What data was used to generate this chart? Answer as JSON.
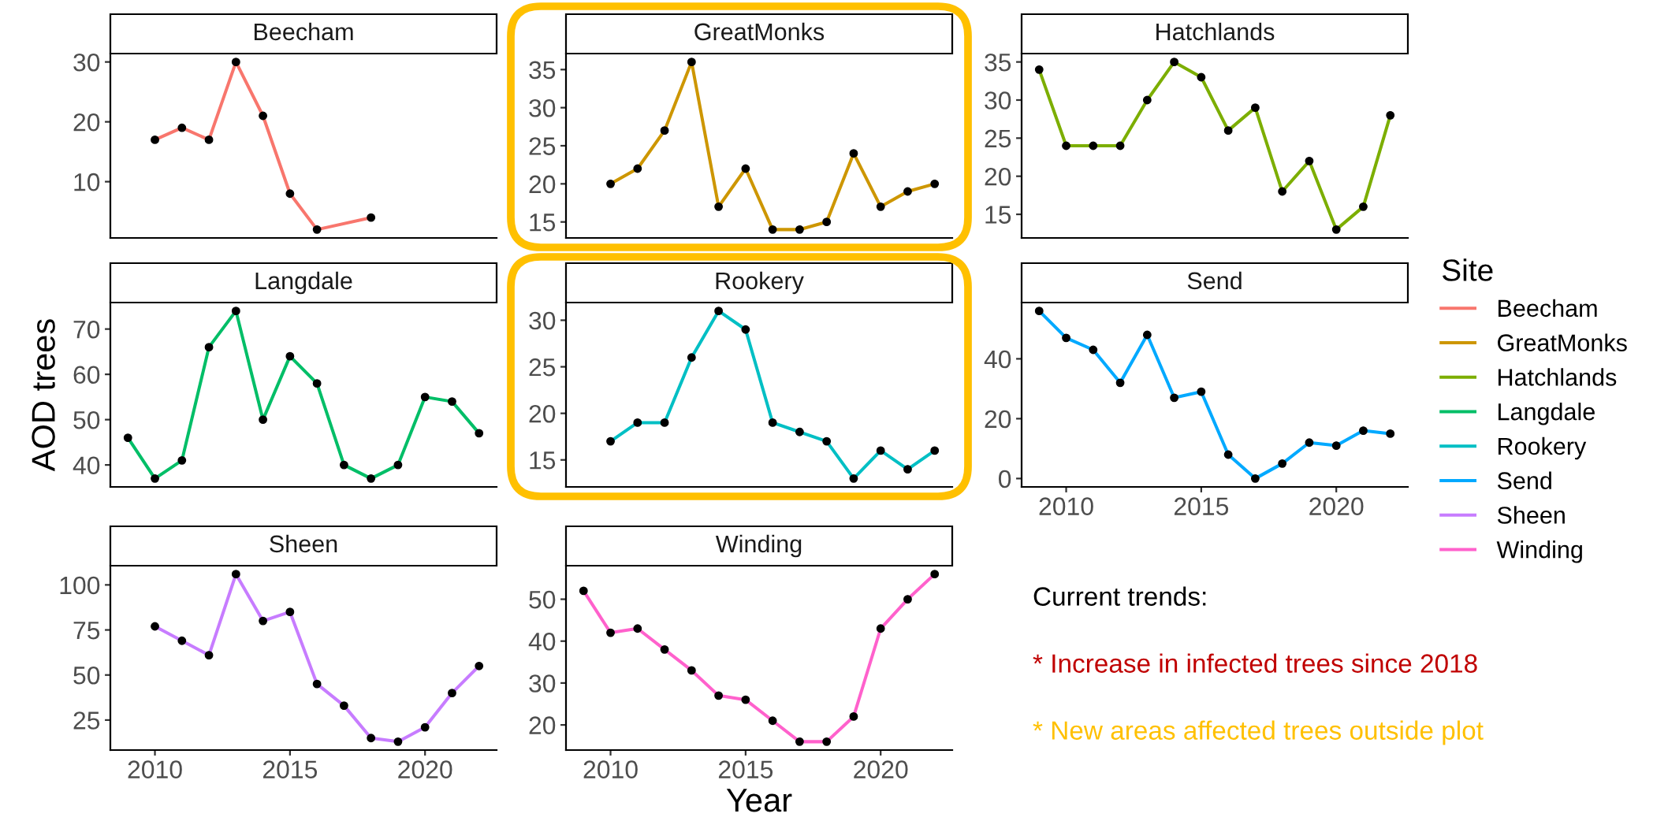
{
  "chart_data": [
    {
      "type": "line",
      "title": "Beecham",
      "x": [
        2010,
        2011,
        2012,
        2013,
        2014,
        2015,
        2016,
        2018
      ],
      "series": [
        {
          "name": "Beecham",
          "color": "#f8766d",
          "values": [
            17,
            19,
            17,
            30,
            21,
            8,
            2,
            4
          ]
        }
      ],
      "marker": "circle",
      "xlim": [
        2008.35,
        2022.65
      ],
      "xticks": [
        2010,
        2015,
        2020
      ],
      "ylim": [
        0.6,
        31.4
      ],
      "yticks": [
        10,
        20,
        30
      ],
      "tick_labels": "y"
    },
    {
      "type": "line",
      "title": "GreatMonks",
      "x": [
        2010,
        2011,
        2012,
        2013,
        2014,
        2015,
        2016,
        2017,
        2018,
        2019,
        2020,
        2021,
        2022
      ],
      "series": [
        {
          "name": "GreatMonks",
          "color": "#cd9600",
          "values": [
            20,
            22,
            27,
            36,
            17,
            22,
            14,
            14,
            15,
            24,
            17,
            19,
            20
          ]
        }
      ],
      "marker": "circle",
      "xlim": [
        2008.35,
        2022.65
      ],
      "xticks": [
        2010,
        2015,
        2020
      ],
      "ylim": [
        12.9,
        37.1
      ],
      "yticks": [
        15,
        20,
        25,
        30,
        35
      ],
      "tick_labels": "y"
    },
    {
      "type": "line",
      "title": "Hatchlands",
      "x": [
        2009,
        2010,
        2011,
        2012,
        2013,
        2014,
        2015,
        2016,
        2017,
        2018,
        2019,
        2020,
        2021,
        2022
      ],
      "series": [
        {
          "name": "Hatchlands",
          "color": "#7cae00",
          "values": [
            34,
            24,
            24,
            24,
            30,
            35,
            33,
            26,
            29,
            18,
            22,
            13,
            16,
            28
          ]
        }
      ],
      "marker": "circle",
      "xlim": [
        2008.35,
        2022.65
      ],
      "xticks": [
        2010,
        2015,
        2020
      ],
      "ylim": [
        11.9,
        36.1
      ],
      "yticks": [
        15,
        20,
        25,
        30,
        35
      ],
      "tick_labels": "y"
    },
    {
      "type": "line",
      "title": "Langdale",
      "ylabel": "AOD trees",
      "x": [
        2009,
        2010,
        2011,
        2012,
        2013,
        2014,
        2015,
        2016,
        2017,
        2018,
        2019,
        2020,
        2021,
        2022
      ],
      "series": [
        {
          "name": "Langdale",
          "color": "#00be67",
          "values": [
            46,
            37,
            41,
            66,
            74,
            50,
            64,
            58,
            40,
            37,
            40,
            55,
            54,
            47
          ]
        }
      ],
      "marker": "circle",
      "xlim": [
        2008.35,
        2022.65
      ],
      "xticks": [
        2010,
        2015,
        2020
      ],
      "ylim": [
        35.15,
        75.85
      ],
      "yticks": [
        40,
        50,
        60,
        70
      ],
      "tick_labels": "y"
    },
    {
      "type": "line",
      "title": "Rookery",
      "x": [
        2010,
        2011,
        2012,
        2013,
        2014,
        2015,
        2016,
        2017,
        2018,
        2019,
        2020,
        2021,
        2022
      ],
      "series": [
        {
          "name": "Rookery",
          "color": "#00bfc4",
          "values": [
            17,
            19,
            19,
            26,
            31,
            29,
            19,
            18,
            17,
            13,
            16,
            14,
            16
          ]
        }
      ],
      "marker": "circle",
      "xlim": [
        2008.35,
        2022.65
      ],
      "xticks": [
        2010,
        2015,
        2020
      ],
      "ylim": [
        12.1,
        31.9
      ],
      "yticks": [
        15,
        20,
        25,
        30
      ],
      "tick_labels": "y"
    },
    {
      "type": "line",
      "title": "Send",
      "legend": "right",
      "legend_title": "Site",
      "x": [
        2009,
        2010,
        2011,
        2012,
        2013,
        2014,
        2015,
        2016,
        2017,
        2018,
        2019,
        2020,
        2021,
        2022
      ],
      "series": [
        {
          "name": "Send",
          "color": "#00a9ff",
          "values": [
            56,
            47,
            43,
            32,
            48,
            27,
            29,
            8,
            0,
            5,
            12,
            11,
            16,
            15
          ]
        }
      ],
      "marker": "circle",
      "xlim": [
        2008.35,
        2022.65
      ],
      "xticks": [
        2010,
        2015,
        2020
      ],
      "ylim": [
        -2.8,
        58.8
      ],
      "yticks": [
        0,
        20,
        40
      ]
    },
    {
      "type": "line",
      "title": "Sheen",
      "x": [
        2010,
        2011,
        2012,
        2013,
        2014,
        2015,
        2016,
        2017,
        2018,
        2019,
        2020,
        2021,
        2022
      ],
      "series": [
        {
          "name": "Sheen",
          "color": "#c77cff",
          "values": [
            77,
            69,
            61,
            106,
            80,
            85,
            45,
            33,
            15,
            13,
            21,
            40,
            55
          ]
        }
      ],
      "marker": "circle",
      "xlim": [
        2008.35,
        2022.65
      ],
      "xticks": [
        2010,
        2015,
        2020
      ],
      "ylim": [
        8.35,
        110.65
      ],
      "yticks": [
        25,
        50,
        75,
        100
      ]
    },
    {
      "type": "line",
      "title": "Winding",
      "xlabel": "Year",
      "x": [
        2009,
        2010,
        2011,
        2012,
        2013,
        2014,
        2015,
        2016,
        2017,
        2018,
        2019,
        2020,
        2021,
        2022
      ],
      "series": [
        {
          "name": "Winding",
          "color": "#ff61cc",
          "values": [
            52,
            42,
            43,
            38,
            33,
            27,
            26,
            21,
            16,
            16,
            22,
            43,
            50,
            56
          ]
        }
      ],
      "marker": "circle",
      "xlim": [
        2008.35,
        2022.65
      ],
      "xticks": [
        2010,
        2015,
        2020
      ],
      "ylim": [
        14,
        58
      ],
      "yticks": [
        20,
        30,
        40,
        50
      ]
    },
    {
      "type": "other",
      "annotations": [
        "Current trends:",
        "* Increase in infected trees since 2018",
        "* New areas affected trees outside plot"
      ]
    }
  ]
}
